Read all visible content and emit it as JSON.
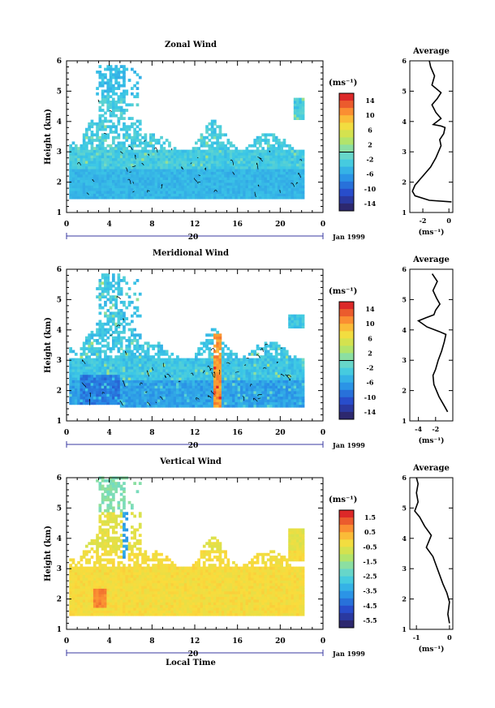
{
  "chart_data": [
    {
      "type": "heatmap",
      "title": "Zonal Wind",
      "xlabel": "",
      "ylabel": "Height (km)",
      "xlim": [
        0,
        24
      ],
      "ylim": [
        1,
        6
      ],
      "xticks": [
        "0",
        "4",
        "8",
        "12",
        "16",
        "20",
        "0"
      ],
      "yticks": [
        "1",
        "2",
        "3",
        "4",
        "5",
        "6"
      ],
      "date_label": "Jan 1999",
      "date_marker": "20",
      "colorbar": {
        "unit": "(ms⁻¹)",
        "ticks": [
          "14",
          "10",
          "6",
          "2",
          "-2",
          "-6",
          "-10",
          "-14"
        ],
        "range": [
          -16,
          16
        ]
      },
      "average": {
        "title": "Average",
        "xlabel": "(ms⁻¹)",
        "xticks": [
          "-2",
          "0"
        ],
        "xlim": [
          -3,
          0.3
        ],
        "yticks": [
          "1",
          "2",
          "3",
          "4",
          "5",
          "6"
        ],
        "profile": [
          [
            0.2,
            1.35
          ],
          [
            -1.5,
            1.4
          ],
          [
            -2.6,
            1.55
          ],
          [
            -2.8,
            1.7
          ],
          [
            -2.6,
            1.9
          ],
          [
            -2.2,
            2.1
          ],
          [
            -1.8,
            2.3
          ],
          [
            -1.4,
            2.5
          ],
          [
            -1.0,
            2.8
          ],
          [
            -0.8,
            3.0
          ],
          [
            -0.6,
            3.2
          ],
          [
            -0.7,
            3.4
          ],
          [
            -0.4,
            3.6
          ],
          [
            -0.3,
            3.8
          ],
          [
            -0.6,
            3.85
          ],
          [
            -1.2,
            3.9
          ],
          [
            -0.6,
            4.1
          ],
          [
            -1.0,
            4.3
          ],
          [
            -1.3,
            4.55
          ],
          [
            -0.9,
            4.75
          ],
          [
            -0.6,
            4.95
          ],
          [
            -1.3,
            5.2
          ],
          [
            -1.1,
            5.5
          ],
          [
            -1.4,
            5.8
          ],
          [
            -1.5,
            6.0
          ]
        ]
      }
    },
    {
      "type": "heatmap",
      "title": "Meridional Wind",
      "xlabel": "",
      "ylabel": "Height (km)",
      "xlim": [
        0,
        24
      ],
      "ylim": [
        1,
        6
      ],
      "xticks": [
        "0",
        "4",
        "8",
        "12",
        "16",
        "20",
        "0"
      ],
      "yticks": [
        "1",
        "2",
        "3",
        "4",
        "5",
        "6"
      ],
      "date_label": "Jan 1999",
      "date_marker": "20",
      "colorbar": {
        "unit": "(ms⁻¹)",
        "ticks": [
          "14",
          "10",
          "6",
          "2",
          "-2",
          "-6",
          "-10",
          "-14"
        ],
        "range": [
          -16,
          16
        ]
      },
      "average": {
        "title": "Average",
        "xlabel": "(ms⁻¹)",
        "xticks": [
          "-4",
          "-2"
        ],
        "xlim": [
          -5,
          0
        ],
        "yticks": [
          "1",
          "2",
          "3",
          "4",
          "5",
          "6"
        ],
        "profile": [
          [
            -0.6,
            1.3
          ],
          [
            -1.0,
            1.5
          ],
          [
            -1.6,
            1.8
          ],
          [
            -2.2,
            2.2
          ],
          [
            -2.3,
            2.5
          ],
          [
            -2.0,
            2.7
          ],
          [
            -1.7,
            3.0
          ],
          [
            -1.3,
            3.3
          ],
          [
            -1.0,
            3.6
          ],
          [
            -0.8,
            3.85
          ],
          [
            -1.6,
            3.95
          ],
          [
            -3.0,
            4.1
          ],
          [
            -4.0,
            4.3
          ],
          [
            -3.1,
            4.4
          ],
          [
            -2.2,
            4.5
          ],
          [
            -2.0,
            4.65
          ],
          [
            -1.5,
            4.85
          ],
          [
            -1.9,
            5.05
          ],
          [
            -2.3,
            5.3
          ],
          [
            -1.8,
            5.6
          ],
          [
            -2.4,
            5.85
          ]
        ]
      }
    },
    {
      "type": "heatmap",
      "title": "Vertical Wind",
      "xlabel": "Local Time",
      "ylabel": "Height (km)",
      "xlim": [
        0,
        24
      ],
      "ylim": [
        1,
        6
      ],
      "xticks": [
        "0",
        "4",
        "8",
        "12",
        "16",
        "20",
        "0"
      ],
      "yticks": [
        "1",
        "2",
        "3",
        "4",
        "5",
        "6"
      ],
      "date_label": "Jan 1999",
      "date_marker": "20",
      "colorbar": {
        "unit": "(ms⁻¹)",
        "ticks": [
          "1.5",
          "0.5",
          "-0.5",
          "-1.5",
          "-2.5",
          "-3.5",
          "-4.5",
          "-5.5"
        ],
        "range": [
          -6,
          2
        ]
      },
      "average": {
        "title": "Average",
        "xlabel": "(ms⁻¹)",
        "xticks": [
          "-1",
          "0"
        ],
        "xlim": [
          -1.2,
          0.1
        ],
        "yticks": [
          "1",
          "2",
          "3",
          "4",
          "5",
          "6"
        ],
        "profile": [
          [
            0.0,
            1.2
          ],
          [
            -0.05,
            1.5
          ],
          [
            0.0,
            1.9
          ],
          [
            -0.08,
            2.2
          ],
          [
            -0.2,
            2.5
          ],
          [
            -0.3,
            2.8
          ],
          [
            -0.4,
            3.1
          ],
          [
            -0.5,
            3.4
          ],
          [
            -0.7,
            3.7
          ],
          [
            -0.55,
            4.1
          ],
          [
            -0.75,
            4.4
          ],
          [
            -0.9,
            4.7
          ],
          [
            -1.05,
            4.9
          ],
          [
            -0.95,
            5.2
          ],
          [
            -1.0,
            5.5
          ],
          [
            -0.95,
            5.8
          ],
          [
            -1.0,
            6.0
          ]
        ]
      }
    }
  ]
}
